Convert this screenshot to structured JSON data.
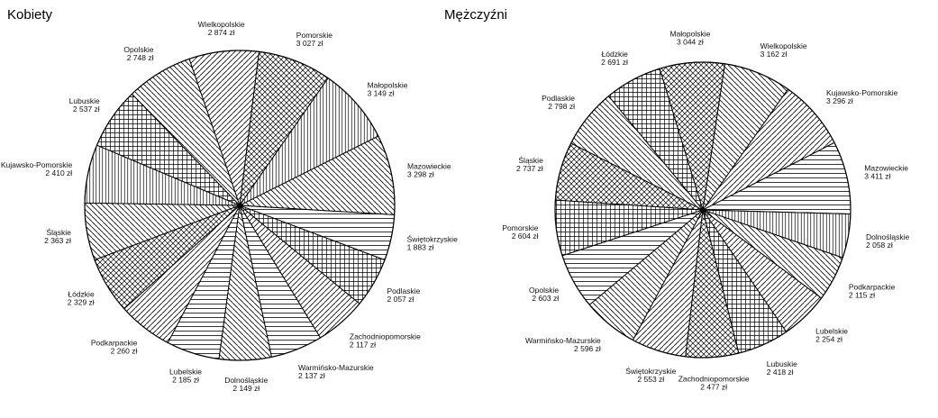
{
  "chart_data": [
    {
      "type": "pie",
      "title": "Kobiety",
      "slices": [
        {
          "label": "Wielkopolskie",
          "value_text": "2 874 zł",
          "value": 2874,
          "pattern": "diag-right"
        },
        {
          "label": "Pomorskie",
          "value_text": "3 027 zł",
          "value": 3027,
          "pattern": "cross-dense"
        },
        {
          "label": "Małopolskie",
          "value_text": "3 149 zł",
          "value": 3149,
          "pattern": "vertical-fine"
        },
        {
          "label": "Mazowieckie",
          "value_text": "3 298 zł",
          "value": 3298,
          "pattern": "diag-left"
        },
        {
          "label": "Świętokrzyskie",
          "value_text": "1 883 zł",
          "value": 1883,
          "pattern": "horizontal"
        },
        {
          "label": "Podlaskie",
          "value_text": "2 057 zł",
          "value": 2057,
          "pattern": "grid-fine"
        },
        {
          "label": "Zachodniopomorskie",
          "value_text": "2 117 zł",
          "value": 2117,
          "pattern": "diag-right"
        },
        {
          "label": "Warmińsko-Mazurskie",
          "value_text": "2 137 zł",
          "value": 2137,
          "pattern": "horizontal"
        },
        {
          "label": "Dolnośląskie",
          "value_text": "2 149 zł",
          "value": 2149,
          "pattern": "diag-left"
        },
        {
          "label": "Lubelskie",
          "value_text": "2 185 zł",
          "value": 2185,
          "pattern": "horizontal"
        },
        {
          "label": "Podkarpackie",
          "value_text": "2 260 zł",
          "value": 2260,
          "pattern": "diag-right"
        },
        {
          "label": "Łódzkie",
          "value_text": "2 329 zł",
          "value": 2329,
          "pattern": "cross-dense"
        },
        {
          "label": "Śląskie",
          "value_text": "2 363 zł",
          "value": 2363,
          "pattern": "diag-left"
        },
        {
          "label": "Kujawsko-Pomorskie",
          "value_text": "2 410 zł",
          "value": 2410,
          "pattern": "vertical-fine"
        },
        {
          "label": "Lubuskie",
          "value_text": "2 537 zł",
          "value": 2537,
          "pattern": "grid-fine"
        },
        {
          "label": "Opolskie",
          "value_text": "2 748 zł",
          "value": 2748,
          "pattern": "diag-left"
        }
      ]
    },
    {
      "type": "pie",
      "title": "Mężczyźni",
      "slices": [
        {
          "label": "Małopolskie",
          "value_text": "3 044 zł",
          "value": 3044,
          "pattern": "cross-dense"
        },
        {
          "label": "Wielkopolskie",
          "value_text": "3 162 zł",
          "value": 3162,
          "pattern": "diag-left"
        },
        {
          "label": "Kujawsko-Pomorskie",
          "value_text": "3 296 zł",
          "value": 3296,
          "pattern": "diag-right"
        },
        {
          "label": "Mazowieckie",
          "value_text": "3 411 zł",
          "value": 3411,
          "pattern": "horizontal"
        },
        {
          "label": "Dolnośląskie",
          "value_text": "2 058 zł",
          "value": 2058,
          "pattern": "vertical-fine"
        },
        {
          "label": "Podkarpackie",
          "value_text": "2 115 zł",
          "value": 2115,
          "pattern": "diag-left"
        },
        {
          "label": "Lubelskie",
          "value_text": "2 254 zł",
          "value": 2254,
          "pattern": "diag-right"
        },
        {
          "label": "Lubuskie",
          "value_text": "2 418 zł",
          "value": 2418,
          "pattern": "grid-fine"
        },
        {
          "label": "Zachodniopomorskie",
          "value_text": "2 477 zł",
          "value": 2477,
          "pattern": "cross-dense"
        },
        {
          "label": "Świętokrzyskie",
          "value_text": "2 553 zł",
          "value": 2553,
          "pattern": "diag-right"
        },
        {
          "label": "Warmińsko-Mazurskie",
          "value_text": "2 596 zł",
          "value": 2596,
          "pattern": "diag-left"
        },
        {
          "label": "Opolskie",
          "value_text": "2 603 zł",
          "value": 2603,
          "pattern": "horizontal"
        },
        {
          "label": "Pomorskie",
          "value_text": "2 604 zł",
          "value": 2604,
          "pattern": "grid-fine"
        },
        {
          "label": "Śląskie",
          "value_text": "2 737 zł",
          "value": 2737,
          "pattern": "cross-dense"
        },
        {
          "label": "Podlaskie",
          "value_text": "2 798 zł",
          "value": 2798,
          "pattern": "diag-left"
        },
        {
          "label": "Łódzkie",
          "value_text": "2 691 zł",
          "value": 2691,
          "pattern": "grid-fine"
        }
      ]
    }
  ]
}
